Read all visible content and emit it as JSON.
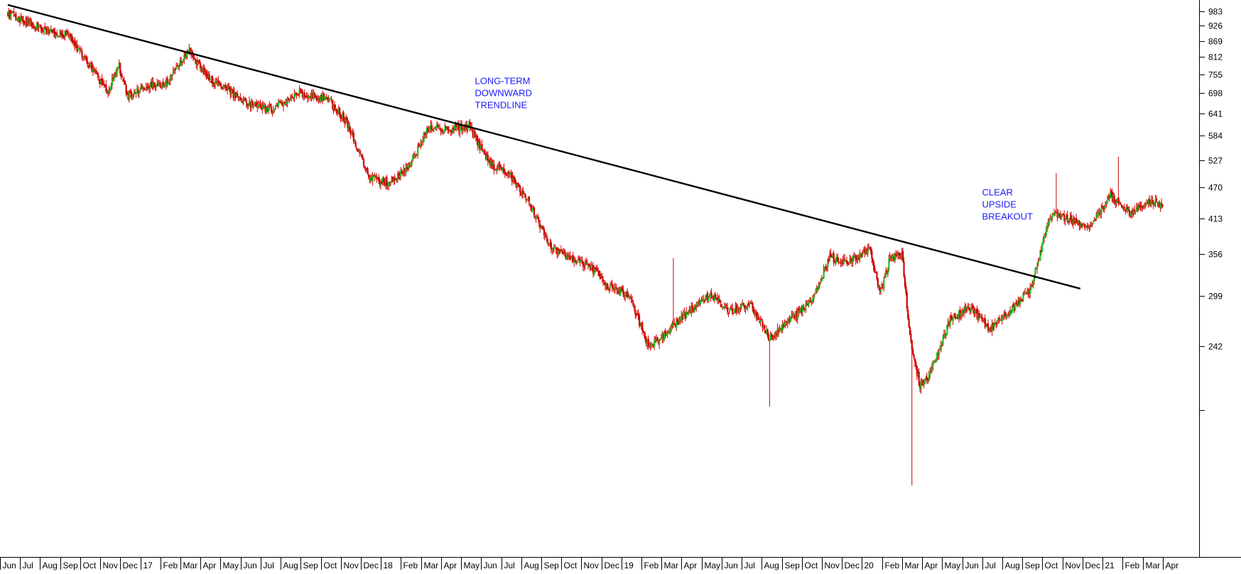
{
  "chart_data": {
    "type": "candlestick",
    "y_axis": {
      "side": "right",
      "ticks": [
        983,
        926,
        869,
        812,
        755,
        698,
        641,
        584,
        527,
        470,
        413,
        356,
        299,
        242
      ],
      "unlabeled_ticks": [
        185
      ],
      "scale": "log",
      "range": [
        140,
        1020
      ]
    },
    "x_axis": {
      "labels": [
        "Jun",
        "Jul",
        "Aug",
        "Sep",
        "Oct",
        "Nov",
        "Dec",
        "17",
        "Feb",
        "Mar",
        "Apr",
        "May",
        "Jun",
        "Jul",
        "Aug",
        "Sep",
        "Oct",
        "Nov",
        "Dec",
        "18",
        "Feb",
        "Mar",
        "Apr",
        "May",
        "Jun",
        "Jul",
        "Aug",
        "Sep",
        "Oct",
        "Nov",
        "Dec",
        "19",
        "Feb",
        "Mar",
        "Apr",
        "May",
        "Jun",
        "Jul",
        "Aug",
        "Sep",
        "Oct",
        "Nov",
        "Dec",
        "20",
        "Feb",
        "Mar",
        "Apr",
        "May",
        "Jun",
        "Jul",
        "Aug",
        "Sep",
        "Oct",
        "Nov",
        "Dec",
        "21",
        "Feb",
        "Mar",
        "Apr"
      ]
    },
    "price_path": [
      {
        "t": 0,
        "v": 975
      },
      {
        "t": 2,
        "v": 900
      },
      {
        "t": 3,
        "v": 890
      },
      {
        "t": 4,
        "v": 790
      },
      {
        "t": 5,
        "v": 700
      },
      {
        "t": 5.5,
        "v": 790
      },
      {
        "t": 6,
        "v": 690
      },
      {
        "t": 7,
        "v": 720
      },
      {
        "t": 8,
        "v": 730
      },
      {
        "t": 9,
        "v": 840
      },
      {
        "t": 10,
        "v": 740
      },
      {
        "t": 12,
        "v": 670
      },
      {
        "t": 13,
        "v": 650
      },
      {
        "t": 14.5,
        "v": 700
      },
      {
        "t": 16,
        "v": 680
      },
      {
        "t": 17,
        "v": 610
      },
      {
        "t": 18,
        "v": 490
      },
      {
        "t": 19,
        "v": 480
      },
      {
        "t": 20,
        "v": 510
      },
      {
        "t": 21,
        "v": 610
      },
      {
        "t": 22,
        "v": 600
      },
      {
        "t": 23,
        "v": 610
      },
      {
        "t": 24,
        "v": 520
      },
      {
        "t": 25,
        "v": 500
      },
      {
        "t": 26,
        "v": 440
      },
      {
        "t": 27,
        "v": 370
      },
      {
        "t": 28,
        "v": 350
      },
      {
        "t": 29,
        "v": 340
      },
      {
        "t": 30,
        "v": 310
      },
      {
        "t": 31,
        "v": 300
      },
      {
        "t": 32,
        "v": 240
      },
      {
        "t": 33,
        "v": 260
      },
      {
        "t": 34,
        "v": 280
      },
      {
        "t": 35,
        "v": 300
      },
      {
        "t": 36,
        "v": 280
      },
      {
        "t": 37,
        "v": 290
      },
      {
        "t": 38,
        "v": 250
      },
      {
        "t": 39,
        "v": 270
      },
      {
        "t": 40,
        "v": 290
      },
      {
        "t": 41,
        "v": 350
      },
      {
        "t": 42,
        "v": 345
      },
      {
        "t": 43,
        "v": 365
      },
      {
        "t": 43.5,
        "v": 300
      },
      {
        "t": 44,
        "v": 350
      },
      {
        "t": 44.6,
        "v": 355
      },
      {
        "t": 45,
        "v": 250
      },
      {
        "t": 45.5,
        "v": 205
      },
      {
        "t": 46,
        "v": 215
      },
      {
        "t": 47,
        "v": 270
      },
      {
        "t": 48,
        "v": 285
      },
      {
        "t": 49,
        "v": 260
      },
      {
        "t": 50,
        "v": 280
      },
      {
        "t": 51,
        "v": 305
      },
      {
        "t": 52,
        "v": 420
      },
      {
        "t": 53,
        "v": 410
      },
      {
        "t": 54,
        "v": 400
      },
      {
        "t": 55,
        "v": 455
      },
      {
        "t": 56,
        "v": 420
      },
      {
        "t": 57,
        "v": 445
      },
      {
        "t": 57.6,
        "v": 440
      }
    ],
    "trendline": {
      "from": {
        "t": 0,
        "v": 1010
      },
      "to": {
        "t": 53.5,
        "v": 308
      }
    },
    "annotations": [
      {
        "lines": [
          "LONG-TERM",
          "DOWNWARD",
          "TRENDLINE"
        ],
        "t": 23.3,
        "v": 725
      },
      {
        "lines": [
          "CLEAR",
          "UPSIDE",
          "BREAKOUT"
        ],
        "t": 48.6,
        "v": 455
      }
    ],
    "colors": {
      "up": "#20c020",
      "down": "#d00000",
      "trendline": "#000000",
      "annotation": "#1a1aff",
      "axis": "#000000"
    }
  }
}
